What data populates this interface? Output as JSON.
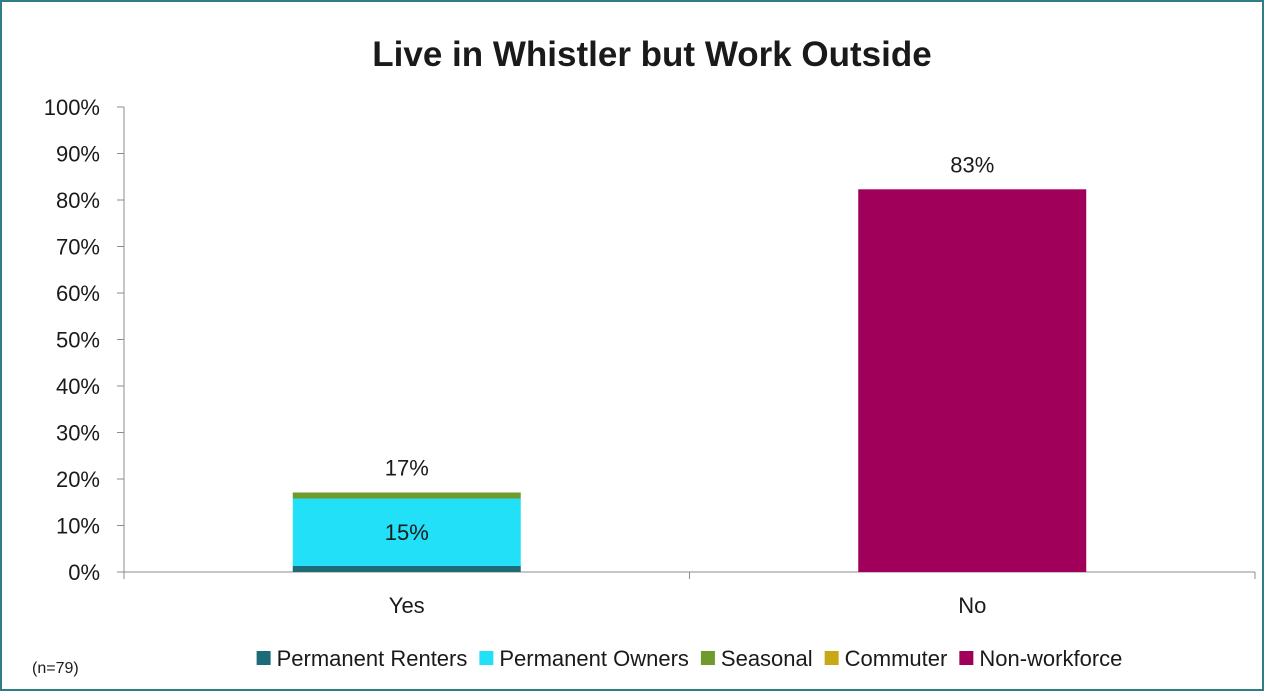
{
  "chart_data": {
    "type": "bar",
    "stacked": true,
    "title": "Live in Whistler but Work Outside",
    "categories": [
      "Yes",
      "No"
    ],
    "ylim": [
      0,
      100
    ],
    "yticks": [
      "0%",
      "10%",
      "20%",
      "30%",
      "40%",
      "50%",
      "60%",
      "70%",
      "80%",
      "90%",
      "100%"
    ],
    "grid": false,
    "legend_position": "bottom",
    "series": [
      {
        "name": "Permanent Renters",
        "color": "#1c6b78",
        "values": [
          1.3,
          0
        ]
      },
      {
        "name": "Permanent Owners",
        "color": "#22e0f8",
        "values": [
          14.5,
          0
        ]
      },
      {
        "name": "Seasonal",
        "color": "#6f9a2c",
        "values": [
          1.3,
          0
        ]
      },
      {
        "name": "Commuter",
        "color": "#c8a814",
        "values": [
          0,
          0
        ]
      },
      {
        "name": "Non-workforce",
        "color": "#a0005a",
        "values": [
          0,
          82.3
        ]
      }
    ],
    "data_labels": [
      {
        "category": "Yes",
        "series": "Permanent Owners",
        "text": "15%",
        "position": "inside-center"
      },
      {
        "category": "Yes",
        "series": "total",
        "text": "17%",
        "position": "above"
      },
      {
        "category": "No",
        "series": "total",
        "text": "83%",
        "position": "above"
      }
    ],
    "note": "(n=79)"
  }
}
